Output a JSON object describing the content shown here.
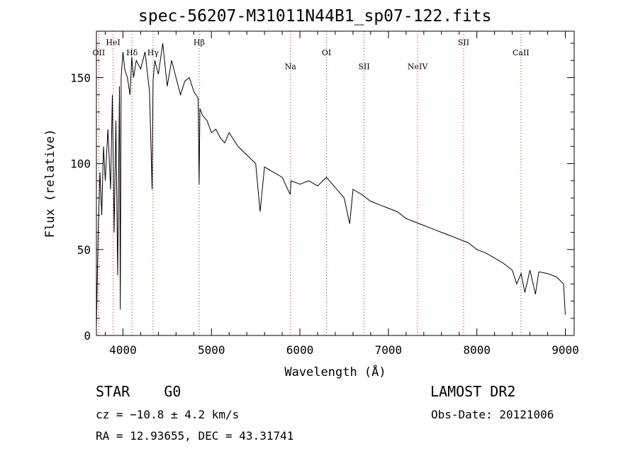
{
  "header": {
    "title": "spec-56207-M31011N44B1_sp07-122.fits"
  },
  "footer": {
    "object_class": "STAR",
    "subclass": "G0",
    "survey": "LAMOST DR2",
    "cz_text": "cz = −10.8 ± 4.2 km/s",
    "obs_date": "Obs-Date: 20121006",
    "radec_text": "RA =  12.93655, DEC =  43.31741"
  },
  "chart_data": {
    "type": "line",
    "title": "spec-56207-M31011N44B1_sp07-122.fits",
    "xlabel": "Wavelength (Å)",
    "ylabel": "Flux (relative)",
    "xlim": [
      3700,
      9100
    ],
    "ylim": [
      0,
      177
    ],
    "xticks": [
      4000,
      5000,
      6000,
      7000,
      8000,
      9000
    ],
    "yticks": [
      0,
      50,
      100,
      150
    ],
    "grid": false,
    "line_color": "#000000",
    "marker_color": "#ff0000",
    "series": [
      {
        "x": [
          3700,
          3720,
          3740,
          3760,
          3780,
          3800,
          3830,
          3860,
          3880,
          3900,
          3920,
          3940,
          3960,
          3970,
          3980,
          4000,
          4020,
          4050,
          4080,
          4100,
          4120,
          4150,
          4200,
          4250,
          4300,
          4330,
          4340,
          4360,
          4400,
          4450,
          4500,
          4550,
          4600,
          4650,
          4700,
          4750,
          4800,
          4850,
          4861,
          4870,
          4900,
          4950,
          5000,
          5050,
          5100,
          5150,
          5200,
          5300,
          5400,
          5500,
          5550,
          5600,
          5700,
          5800,
          5890,
          5900,
          6000,
          6100,
          6200,
          6300,
          6400,
          6500,
          6563,
          6600,
          6700,
          6800,
          6900,
          7000,
          7100,
          7200,
          7300,
          7400,
          7500,
          7600,
          7700,
          7800,
          7900,
          8000,
          8100,
          8200,
          8300,
          8350,
          8400,
          8450,
          8500,
          8542,
          8600,
          8662,
          8700,
          8800,
          8900,
          8980,
          9000
        ],
        "y": [
          5,
          60,
          95,
          70,
          110,
          90,
          120,
          85,
          140,
          60,
          125,
          35,
          145,
          15,
          150,
          165,
          155,
          150,
          140,
          162,
          150,
          160,
          155,
          165,
          142,
          85,
          148,
          160,
          152,
          170,
          145,
          160,
          150,
          140,
          148,
          150,
          142,
          138,
          88,
          132,
          128,
          125,
          118,
          120,
          115,
          112,
          118,
          110,
          105,
          100,
          72,
          98,
          95,
          92,
          82,
          90,
          88,
          90,
          87,
          92,
          86,
          80,
          65,
          85,
          82,
          78,
          76,
          74,
          72,
          68,
          66,
          64,
          62,
          60,
          58,
          56,
          54,
          50,
          48,
          45,
          42,
          40,
          38,
          30,
          36,
          25,
          38,
          24,
          37,
          36,
          34,
          30,
          12
        ]
      }
    ],
    "line_markers": [
      {
        "label": "OII",
        "x": 3727,
        "label_y": 163
      },
      {
        "label": "HeI",
        "x": 3889,
        "label_y": 169
      },
      {
        "label": "Hδ",
        "x": 4102,
        "label_y": 163
      },
      {
        "label": "Hγ",
        "x": 4340,
        "label_y": 163
      },
      {
        "label": "Hβ",
        "x": 4861,
        "label_y": 169
      },
      {
        "label": "Na",
        "x": 5893,
        "label_y": 155
      },
      {
        "label": "OI",
        "x": 6300,
        "label_y": 163
      },
      {
        "label": "SII",
        "x": 6725,
        "label_y": 155
      },
      {
        "label": "NeIV",
        "x": 7330,
        "label_y": 155
      },
      {
        "label": "SII",
        "x": 7850,
        "label_y": 169
      },
      {
        "label": "CaII",
        "x": 8498,
        "label_y": 163
      }
    ]
  }
}
